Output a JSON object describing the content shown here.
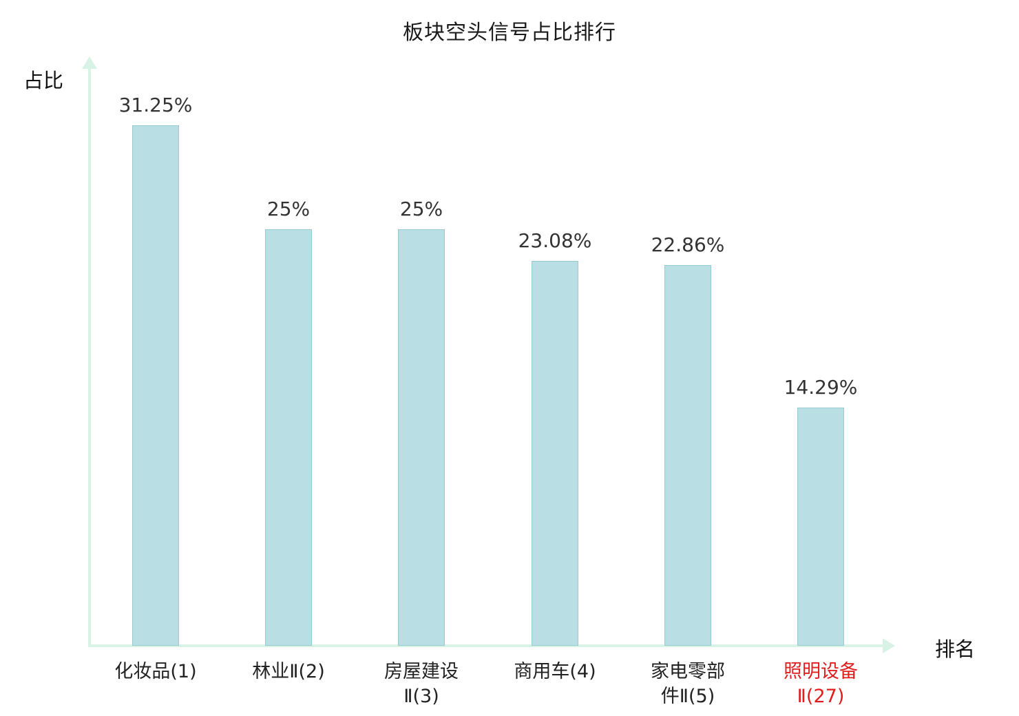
{
  "page": {
    "title": "板块空头信号占比排行",
    "y_axis_label": "占比",
    "x_axis_label": "排名"
  },
  "chart_data": {
    "type": "bar",
    "title": "板块空头信号占比排行",
    "xlabel": "排名",
    "ylabel": "占比",
    "categories": [
      "化妆品(1)",
      "林业Ⅱ(2)",
      "房屋建设Ⅱ(3)",
      "商用车(4)",
      "家电零部件Ⅱ(5)",
      "照明设备Ⅱ(27)"
    ],
    "category_lines": [
      [
        "化妆品(1)"
      ],
      [
        "林业Ⅱ(2)"
      ],
      [
        "房屋建设",
        "Ⅱ(3)"
      ],
      [
        "商用车(4)"
      ],
      [
        "家电零部",
        "件Ⅱ(5)"
      ],
      [
        "照明设备",
        "Ⅱ(27)"
      ]
    ],
    "values": [
      31.25,
      25,
      25,
      23.08,
      22.86,
      14.29
    ],
    "value_labels": [
      "31.25%",
      "25%",
      "25%",
      "23.08%",
      "22.86%",
      "14.29%"
    ],
    "ylim": [
      0,
      35
    ],
    "grid": false,
    "legend": "none",
    "highlight_index": 5,
    "colors": {
      "bar_fill": "#b9dee4",
      "bar_border": "#96cbd2",
      "axis": "#d9f2e6",
      "text": "#333333",
      "highlight": "#e01e1e"
    }
  }
}
